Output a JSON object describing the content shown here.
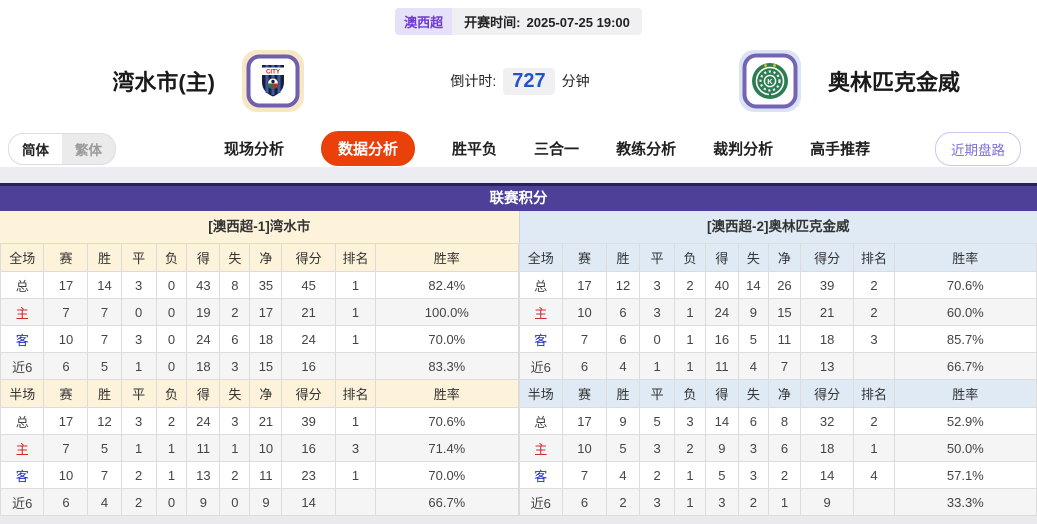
{
  "header": {
    "league_badge": "澳西超",
    "kickoff_label": "开赛时间:",
    "kickoff_time": "2025-07-25 19:00",
    "home_team": "湾水市(主)",
    "away_team": "奥林匹克金威",
    "countdown_label": "倒计时:",
    "countdown_value": "727",
    "countdown_unit": "分钟"
  },
  "nav": {
    "lang_toggle": [
      "简体",
      "繁体"
    ],
    "active_lang": "简体",
    "tabs": [
      "现场分析",
      "数据分析",
      "胜平负",
      "三合一",
      "教练分析",
      "裁判分析",
      "高手推荐"
    ],
    "active_tab": "数据分析",
    "right_button": "近期盘路"
  },
  "icons": {
    "home_logo": "city-striped-shield-crest",
    "away_logo": "green-laurel-k-crest"
  },
  "table": {
    "title": "联赛积分",
    "home_header": "[澳西超-1]湾水市",
    "away_header": "[澳西超-2]奥林匹克金威",
    "columns_full": [
      "全场",
      "赛",
      "胜",
      "平",
      "负",
      "得",
      "失",
      "净",
      "得分",
      "排名",
      "胜率"
    ],
    "columns_half": [
      "半场",
      "赛",
      "胜",
      "平",
      "负",
      "得",
      "失",
      "净",
      "得分",
      "排名",
      "胜率"
    ],
    "home_full": [
      [
        "总",
        "17",
        "14",
        "3",
        "0",
        "43",
        "8",
        "35",
        "45",
        "1",
        "82.4%"
      ],
      [
        "主",
        "7",
        "7",
        "0",
        "0",
        "19",
        "2",
        "17",
        "21",
        "1",
        "100.0%"
      ],
      [
        "客",
        "10",
        "7",
        "3",
        "0",
        "24",
        "6",
        "18",
        "24",
        "1",
        "70.0%"
      ],
      [
        "近6",
        "6",
        "5",
        "1",
        "0",
        "18",
        "3",
        "15",
        "16",
        "",
        "83.3%"
      ]
    ],
    "home_half": [
      [
        "总",
        "17",
        "12",
        "3",
        "2",
        "24",
        "3",
        "21",
        "39",
        "1",
        "70.6%"
      ],
      [
        "主",
        "7",
        "5",
        "1",
        "1",
        "11",
        "1",
        "10",
        "16",
        "3",
        "71.4%"
      ],
      [
        "客",
        "10",
        "7",
        "2",
        "1",
        "13",
        "2",
        "11",
        "23",
        "1",
        "70.0%"
      ],
      [
        "近6",
        "6",
        "4",
        "2",
        "0",
        "9",
        "0",
        "9",
        "14",
        "",
        "66.7%"
      ]
    ],
    "away_full": [
      [
        "总",
        "17",
        "12",
        "3",
        "2",
        "40",
        "14",
        "26",
        "39",
        "2",
        "70.6%"
      ],
      [
        "主",
        "10",
        "6",
        "3",
        "1",
        "24",
        "9",
        "15",
        "21",
        "2",
        "60.0%"
      ],
      [
        "客",
        "7",
        "6",
        "0",
        "1",
        "16",
        "5",
        "11",
        "18",
        "3",
        "85.7%"
      ],
      [
        "近6",
        "6",
        "4",
        "1",
        "1",
        "11",
        "4",
        "7",
        "13",
        "",
        "66.7%"
      ]
    ],
    "away_half": [
      [
        "总",
        "17",
        "9",
        "5",
        "3",
        "14",
        "6",
        "8",
        "32",
        "2",
        "52.9%"
      ],
      [
        "主",
        "10",
        "5",
        "3",
        "2",
        "9",
        "3",
        "6",
        "18",
        "1",
        "50.0%"
      ],
      [
        "客",
        "7",
        "4",
        "2",
        "1",
        "5",
        "3",
        "2",
        "14",
        "4",
        "57.1%"
      ],
      [
        "近6",
        "6",
        "2",
        "3",
        "1",
        "3",
        "2",
        "1",
        "9",
        "",
        "33.3%"
      ]
    ]
  },
  "colors": {
    "table_title_bg": "#4e3f99",
    "active_tab_bg": "#e94109",
    "league_badge_bg": "#e7e0f9",
    "league_badge_text": "#6d3bd4",
    "countdown_number": "#1e56c8",
    "home_header_bg": "#fcf3da",
    "away_header_bg": "#dfeaf4",
    "home_row_label": "#cc2b2b",
    "away_row_label": "#2333c4"
  }
}
